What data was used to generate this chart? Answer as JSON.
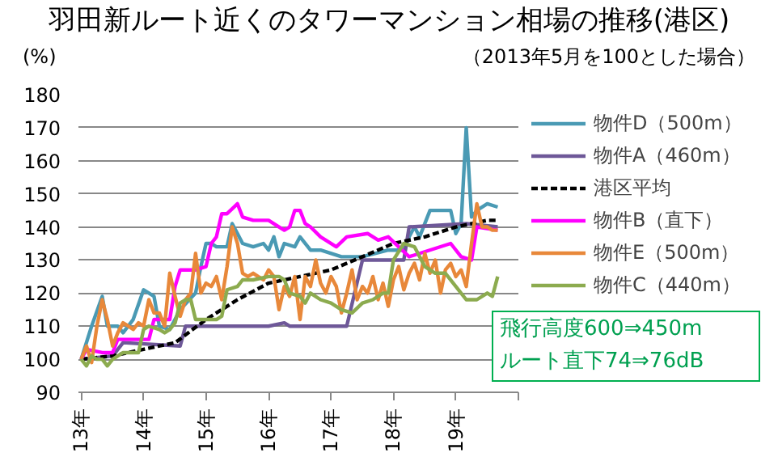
{
  "chart_data": {
    "type": "line",
    "title": "羽田新ルート近くのタワーマンション相場の推移(港区)",
    "ylabel": "(%)",
    "annotations": [
      "（2013年5月を100とした場合）",
      "飛行高度600⇒450m\nルート直下74⇒76dB"
    ],
    "xlim": [
      "2013-04-15",
      "2020-05"
    ],
    "xticks": [
      {
        "value": "2013-05",
        "label": "13年"
      },
      {
        "value": "2014-05",
        "label": "14年"
      },
      {
        "value": "2015-05",
        "label": "15年"
      },
      {
        "value": "2016-05",
        "label": "16年"
      },
      {
        "value": "2017-05",
        "label": "17年"
      },
      {
        "value": "2018-05",
        "label": "18年"
      },
      {
        "value": "2019-05",
        "label": "19年"
      },
      {
        "value": "2020-05",
        "label": null
      }
    ],
    "ylim": [
      90,
      180
    ],
    "yticks": [
      90,
      100,
      110,
      120,
      130,
      140,
      150,
      160,
      170,
      180
    ],
    "grid": "y",
    "legend": "right",
    "series": [
      {
        "name": "物件D（500m）",
        "color": "#4a9ab4",
        "x": [
          "2013-05",
          "2013-07",
          "2013-09",
          "2013-10",
          "2013-12",
          "2014-01",
          "2014-03",
          "2014-05",
          "2014-06",
          "2014-07",
          "2014-08",
          "2014-10",
          "2014-12",
          "2015-03",
          "2015-04",
          "2015-05",
          "2015-06",
          "2015-07",
          "2015-09",
          "2015-10",
          "2015-11",
          "2015-12",
          "2016-02",
          "2016-04",
          "2016-05",
          "2016-06",
          "2016-07",
          "2016-08",
          "2016-10",
          "2016-11",
          "2017-01",
          "2017-03",
          "2017-07",
          "2017-11",
          "2018-04",
          "2018-07",
          "2018-08",
          "2018-09",
          "2018-10",
          "2018-12",
          "2019-04",
          "2019-05",
          "2019-06",
          "2019-07",
          "2019-08",
          "2019-09",
          "2019-11",
          "2020-01"
        ],
        "values": [
          100,
          110,
          119,
          110,
          110,
          108,
          112,
          121,
          120,
          119,
          110,
          109,
          115,
          120,
          128,
          135,
          135,
          134,
          134,
          141,
          138,
          135,
          134,
          135,
          133,
          137,
          131,
          135,
          134,
          137,
          133,
          133,
          131,
          131,
          133,
          133,
          137,
          140,
          137,
          145,
          145,
          138,
          141,
          170,
          143,
          145,
          147,
          146
        ]
      },
      {
        "name": "物件A（460m）",
        "color": "#6e5898",
        "x": [
          "2013-05",
          "2013-11",
          "2014-01",
          "2014-12",
          "2015-01",
          "2016-05",
          "2016-08",
          "2016-09",
          "2017-08",
          "2017-11",
          "2018-07",
          "2018-08",
          "2019-07",
          "2020-01"
        ],
        "values": [
          100,
          101,
          105,
          104,
          110,
          110,
          111,
          110,
          110,
          130,
          130,
          140,
          141,
          140
        ]
      },
      {
        "name": "港区平均",
        "color": "#000000",
        "line_style": "dashed",
        "x": [
          "2013-05",
          "2013-11",
          "2014-05",
          "2014-11",
          "2015-05",
          "2015-11",
          "2016-05",
          "2016-11",
          "2017-05",
          "2017-11",
          "2018-05",
          "2018-11",
          "2019-05",
          "2019-11",
          "2020-01"
        ],
        "values": [
          100,
          101,
          103,
          105,
          112,
          118,
          123,
          125,
          127,
          131,
          135,
          137,
          140,
          142,
          142
        ]
      },
      {
        "name": "物件B（直下）",
        "color": "#ff00ff",
        "x": [
          "2013-05",
          "2013-06",
          "2013-09",
          "2013-11",
          "2013-12",
          "2014-06",
          "2014-07",
          "2014-10",
          "2014-11",
          "2014-12",
          "2015-03",
          "2015-05",
          "2015-06",
          "2015-07",
          "2015-08",
          "2015-09",
          "2015-11",
          "2015-12",
          "2016-02",
          "2016-05",
          "2016-07",
          "2016-08",
          "2016-09",
          "2016-10",
          "2016-11",
          "2016-12",
          "2017-01",
          "2017-03",
          "2017-06",
          "2017-08",
          "2017-12",
          "2018-02",
          "2018-04",
          "2018-06",
          "2018-08",
          "2019-04",
          "2019-06",
          "2019-08",
          "2019-09",
          "2020-01"
        ],
        "values": [
          100,
          103,
          102,
          102,
          106,
          106,
          112,
          112,
          122,
          127,
          127,
          128,
          135,
          137,
          144,
          144,
          147,
          143,
          142,
          142,
          140,
          139,
          140,
          145,
          145,
          141,
          140,
          137,
          134,
          137,
          138,
          136,
          137,
          134,
          131,
          135,
          131,
          130,
          140,
          139
        ]
      },
      {
        "name": "物件E（500m）",
        "color": "#e8883a",
        "x": [
          "2013-05",
          "2013-06",
          "2013-07",
          "2013-08",
          "2013-09",
          "2013-10",
          "2013-11",
          "2013-12",
          "2014-01",
          "2014-02",
          "2014-03",
          "2014-04",
          "2014-05",
          "2014-06",
          "2014-07",
          "2014-08",
          "2014-09",
          "2014-10",
          "2014-11",
          "2014-12",
          "2015-01",
          "2015-02",
          "2015-03",
          "2015-04",
          "2015-05",
          "2015-06",
          "2015-07",
          "2015-08",
          "2015-09",
          "2015-10",
          "2015-11",
          "2015-12",
          "2016-01",
          "2016-02",
          "2016-03",
          "2016-04",
          "2016-05",
          "2016-06",
          "2016-07",
          "2016-08",
          "2016-09",
          "2016-10",
          "2016-11",
          "2016-12",
          "2017-01",
          "2017-02",
          "2017-03",
          "2017-04",
          "2017-05",
          "2017-06",
          "2017-07",
          "2017-08",
          "2017-09",
          "2017-10",
          "2017-11",
          "2017-12",
          "2018-01",
          "2018-02",
          "2018-03",
          "2018-04",
          "2018-05",
          "2018-06",
          "2018-07",
          "2018-08",
          "2018-09",
          "2018-10",
          "2018-11",
          "2018-12",
          "2019-01",
          "2019-02",
          "2019-03",
          "2019-04",
          "2019-05",
          "2019-06",
          "2019-07",
          "2019-08",
          "2019-09",
          "2019-10",
          "2019-11",
          "2019-12",
          "2020-01"
        ],
        "values": [
          100,
          104,
          99,
          110,
          118,
          112,
          104,
          108,
          111,
          110,
          109,
          111,
          110,
          118,
          114,
          114,
          110,
          126,
          119,
          113,
          118,
          120,
          132,
          120,
          123,
          122,
          125,
          118,
          128,
          140,
          135,
          126,
          125,
          126,
          125,
          124,
          127,
          125,
          115,
          122,
          119,
          125,
          112,
          125,
          122,
          130,
          123,
          120,
          125,
          122,
          114,
          120,
          127,
          118,
          122,
          120,
          125,
          118,
          123,
          116,
          124,
          128,
          121,
          126,
          129,
          124,
          132,
          126,
          130,
          120,
          127,
          129,
          125,
          127,
          122,
          135,
          147,
          140,
          140,
          139,
          139
        ]
      },
      {
        "name": "物件C（440m）",
        "color": "#8cab4f",
        "x": [
          "2013-05",
          "2013-06",
          "2013-07",
          "2013-08",
          "2013-09",
          "2013-10",
          "2013-11",
          "2014-01",
          "2014-04",
          "2014-05",
          "2014-06",
          "2014-08",
          "2014-09",
          "2014-10",
          "2014-11",
          "2014-12",
          "2015-01",
          "2015-02",
          "2015-03",
          "2015-05",
          "2015-07",
          "2015-08",
          "2015-09",
          "2015-11",
          "2015-12",
          "2016-02",
          "2016-05",
          "2016-07",
          "2016-08",
          "2016-09",
          "2016-11",
          "2016-12",
          "2017-01",
          "2017-03",
          "2017-05",
          "2017-07",
          "2017-09",
          "2017-11",
          "2018-01",
          "2018-03",
          "2018-04",
          "2018-05",
          "2018-07",
          "2018-09",
          "2018-11",
          "2019-01",
          "2019-03",
          "2019-05",
          "2019-07",
          "2019-09",
          "2019-11",
          "2019-12",
          "2020-01"
        ],
        "values": [
          100,
          98,
          101,
          100,
          100,
          98,
          100,
          102,
          102,
          109,
          110,
          109,
          108,
          109,
          111,
          117,
          118,
          118,
          112,
          112,
          112,
          113,
          121,
          122,
          124,
          124,
          125,
          125,
          124,
          120,
          119,
          117,
          120,
          118,
          117,
          115,
          114,
          117,
          118,
          120,
          120,
          130,
          135,
          134,
          128,
          126,
          126,
          122,
          118,
          118,
          120,
          119,
          125
        ]
      }
    ]
  }
}
